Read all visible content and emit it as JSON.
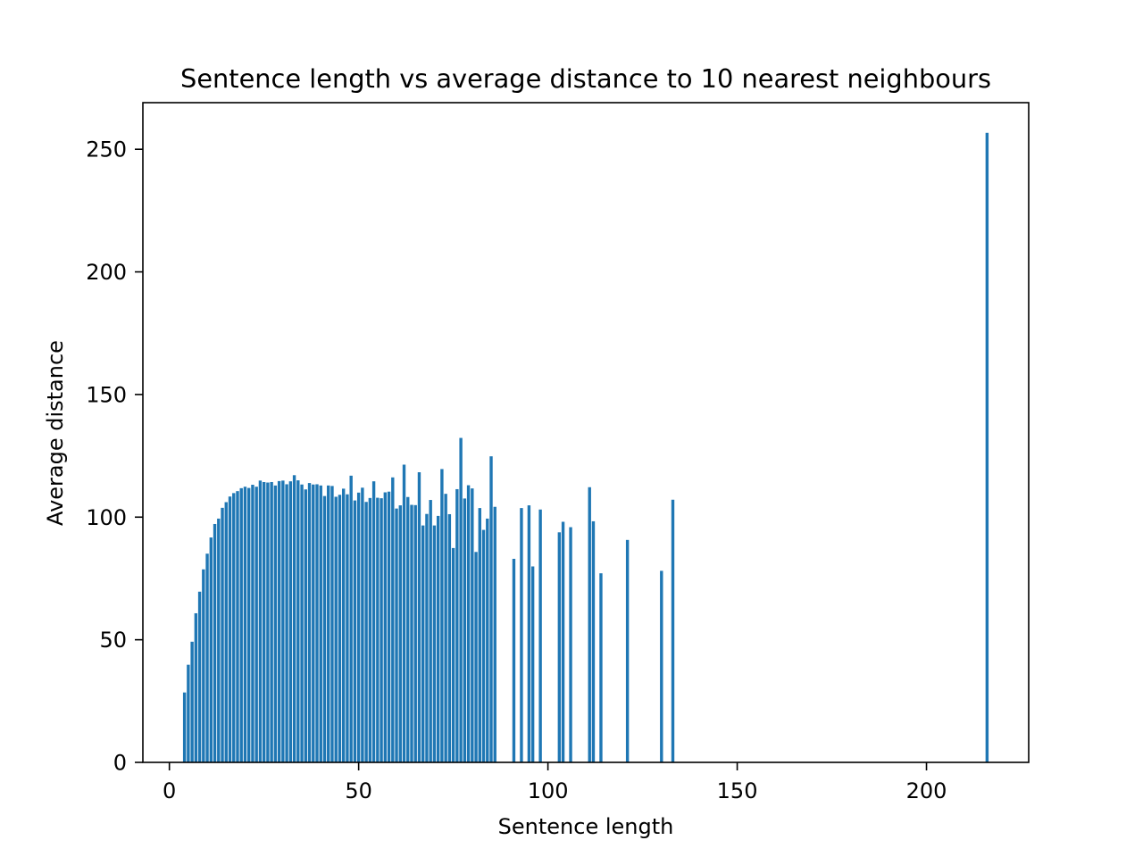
{
  "chart_data": {
    "type": "bar",
    "title": "Sentence length vs average distance to 10 nearest neighbours",
    "xlabel": "Sentence length",
    "ylabel": "Average distance",
    "xlim": [
      -7,
      227
    ],
    "ylim": [
      0,
      269
    ],
    "xticks": [
      0,
      50,
      100,
      150,
      200
    ],
    "yticks": [
      0,
      50,
      100,
      150,
      200,
      250
    ],
    "bar_color": "#1f77b4",
    "grid": false,
    "x": [
      4,
      5,
      6,
      7,
      8,
      9,
      10,
      11,
      12,
      13,
      14,
      15,
      16,
      17,
      18,
      19,
      20,
      21,
      22,
      23,
      24,
      25,
      26,
      27,
      28,
      29,
      30,
      31,
      32,
      33,
      34,
      35,
      36,
      37,
      38,
      39,
      40,
      41,
      42,
      43,
      44,
      45,
      46,
      47,
      48,
      49,
      50,
      51,
      52,
      53,
      54,
      55,
      56,
      57,
      58,
      59,
      60,
      61,
      62,
      63,
      64,
      65,
      66,
      67,
      68,
      69,
      70,
      71,
      72,
      73,
      74,
      75,
      76,
      77,
      78,
      79,
      80,
      81,
      82,
      83,
      84,
      85,
      86,
      91,
      93,
      95,
      96,
      98,
      103,
      104,
      106,
      111,
      112,
      114,
      121,
      130,
      133,
      216
    ],
    "values": [
      28.5,
      39.8,
      49.2,
      60.8,
      69.6,
      78.7,
      85.1,
      91.7,
      97.2,
      99.4,
      103.8,
      106.1,
      108.4,
      109.8,
      110.6,
      111.8,
      112.4,
      111.9,
      113.2,
      112.4,
      114.9,
      114.3,
      114.1,
      114.3,
      112.9,
      114.7,
      114.9,
      113.4,
      114.6,
      117.1,
      115.0,
      113.3,
      111.3,
      113.9,
      113.3,
      113.4,
      112.9,
      108.6,
      112.9,
      112.7,
      108.3,
      109.1,
      111.6,
      109.3,
      116.9,
      106.8,
      110.0,
      112.0,
      106.2,
      107.8,
      114.6,
      107.9,
      107.7,
      110.1,
      110.4,
      116.2,
      103.5,
      104.8,
      121.4,
      108.2,
      105.0,
      104.9,
      118.3,
      96.6,
      101.3,
      107.0,
      96.6,
      100.5,
      119.6,
      109.5,
      101.2,
      87.4,
      111.4,
      132.3,
      107.6,
      113.0,
      111.7,
      85.8,
      103.7,
      94.8,
      99.4,
      124.8,
      104.2,
      83.0,
      103.7,
      104.8,
      79.9,
      103.1,
      93.8,
      98.1,
      95.9,
      112.2,
      98.3,
      77.1,
      90.7,
      78.1,
      107.1,
      256.7
    ]
  }
}
